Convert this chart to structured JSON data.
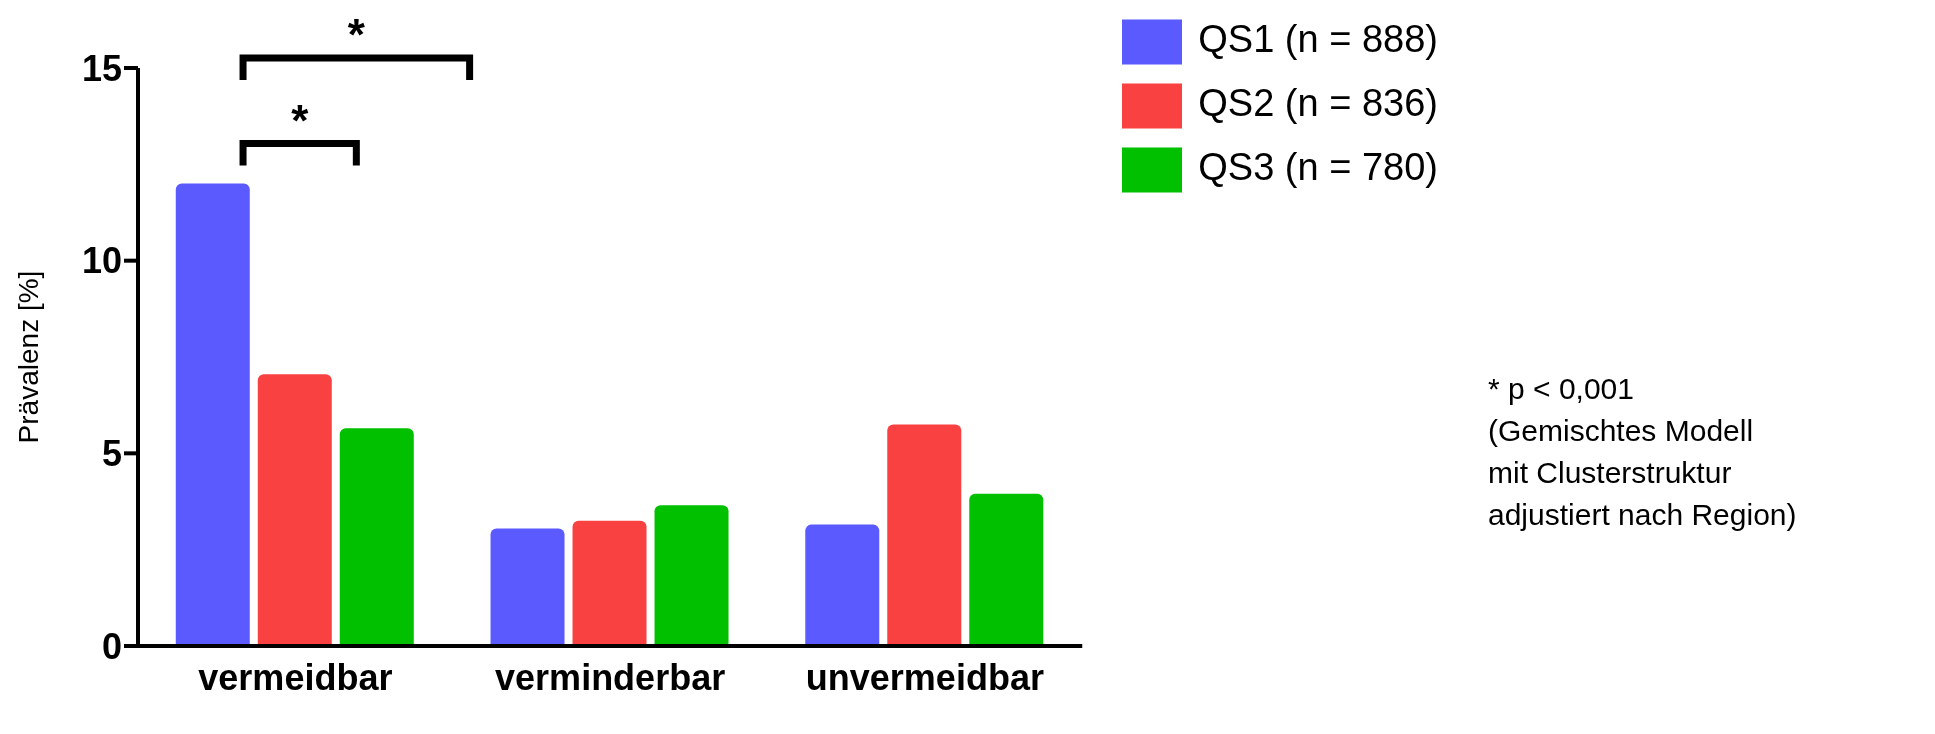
{
  "chart_data": {
    "type": "bar",
    "ylabel": "Prävalenz [%]",
    "categories": [
      "vermeidbar",
      "verminderbar",
      "unvermeidbar"
    ],
    "series": [
      {
        "name": "QS1 (n = 888)",
        "color": "#5a5aff",
        "values": [
          12.0,
          3.05,
          3.15
        ]
      },
      {
        "name": "QS2 (n = 836)",
        "color": "#fa4141",
        "values": [
          7.05,
          3.25,
          5.75
        ]
      },
      {
        "name": "QS3 (n = 780)",
        "color": "#00c000",
        "values": [
          5.65,
          3.65,
          3.95
        ]
      }
    ],
    "ylim": [
      0,
      15
    ],
    "yticks": [
      0,
      5,
      10,
      15
    ],
    "grid": false,
    "legend": "top right",
    "annotations": [
      "*",
      "*",
      "* p < 0,001\n(Gemischtes Modell\nmit Clusterstruktur\nadjustiert nach Region)"
    ]
  }
}
